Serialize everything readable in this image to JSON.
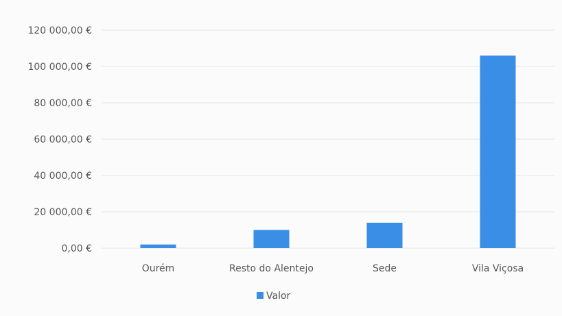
{
  "chart_data": {
    "type": "bar",
    "title": "",
    "xlabel": "",
    "ylabel": "",
    "categories": [
      "Ourém",
      "Resto do Alentejo",
      "Sede",
      "Vila Viçosa"
    ],
    "series": [
      {
        "name": "Valor",
        "values": [
          2000,
          10000,
          14000,
          106000
        ]
      }
    ],
    "ylim": [
      0,
      120000
    ],
    "y_ticks": [
      0,
      20000,
      40000,
      60000,
      80000,
      100000,
      120000
    ],
    "y_tick_labels": [
      "0,00 €",
      "20 000,00 €",
      "40 000,00 €",
      "60 000,00 €",
      "80 000,00 €",
      "100 000,00 €",
      "120 000,00 €"
    ],
    "grid": true,
    "legend_position": "bottom",
    "bar_color": "#3a8ee6",
    "grid_color": "#e4e4e4"
  }
}
